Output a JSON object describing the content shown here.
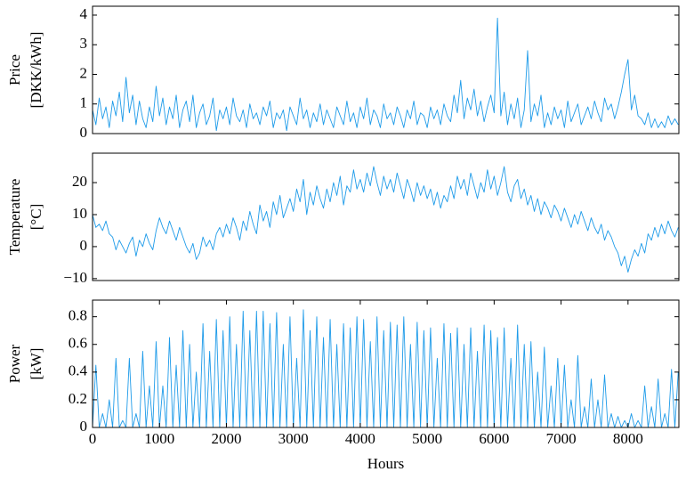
{
  "chart_data": [
    {
      "type": "line",
      "ylabel": [
        "Price",
        "[DKK/kWh]"
      ],
      "xlim": [
        0,
        8760
      ],
      "ylim": [
        0,
        4.3
      ],
      "yticks": [
        0,
        1,
        2,
        3,
        4
      ],
      "x": [
        0,
        50,
        100,
        150,
        200,
        250,
        300,
        350,
        400,
        450,
        500,
        550,
        600,
        650,
        700,
        750,
        800,
        850,
        900,
        950,
        1000,
        1050,
        1100,
        1150,
        1200,
        1250,
        1300,
        1350,
        1400,
        1450,
        1500,
        1550,
        1600,
        1650,
        1700,
        1750,
        1800,
        1850,
        1900,
        1950,
        2000,
        2050,
        2100,
        2150,
        2200,
        2250,
        2300,
        2350,
        2400,
        2450,
        2500,
        2550,
        2600,
        2650,
        2700,
        2750,
        2800,
        2850,
        2900,
        2950,
        3000,
        3050,
        3100,
        3150,
        3200,
        3250,
        3300,
        3350,
        3400,
        3450,
        3500,
        3550,
        3600,
        3650,
        3700,
        3750,
        3800,
        3850,
        3900,
        3950,
        4000,
        4050,
        4100,
        4150,
        4200,
        4250,
        4300,
        4350,
        4400,
        4450,
        4500,
        4550,
        4600,
        4650,
        4700,
        4750,
        4800,
        4850,
        4900,
        4950,
        5000,
        5050,
        5100,
        5150,
        5200,
        5250,
        5300,
        5350,
        5400,
        5450,
        5500,
        5550,
        5600,
        5650,
        5700,
        5750,
        5800,
        5850,
        5900,
        5950,
        6000,
        6050,
        6100,
        6150,
        6200,
        6250,
        6300,
        6350,
        6400,
        6450,
        6500,
        6550,
        6600,
        6650,
        6700,
        6750,
        6800,
        6850,
        6900,
        6950,
        7000,
        7050,
        7100,
        7150,
        7200,
        7250,
        7300,
        7350,
        7400,
        7450,
        7500,
        7550,
        7600,
        7650,
        7700,
        7750,
        7800,
        7850,
        7900,
        7950,
        8000,
        8050,
        8100,
        8150,
        8200,
        8250,
        8300,
        8350,
        8400,
        8450,
        8500,
        8550,
        8600,
        8650,
        8700,
        8750
      ],
      "series": [
        {
          "color": "#1e9be9",
          "values": [
            0.8,
            0.3,
            1.2,
            0.5,
            0.9,
            0.2,
            1.1,
            0.6,
            1.4,
            0.4,
            1.9,
            0.7,
            1.3,
            0.3,
            1.1,
            0.5,
            0.2,
            0.9,
            0.4,
            1.6,
            0.6,
            1.2,
            0.3,
            0.9,
            0.5,
            1.3,
            0.2,
            0.8,
            1.1,
            0.4,
            1.3,
            0.2,
            0.7,
            1.0,
            0.3,
            0.6,
            1.2,
            0.1,
            0.8,
            0.5,
            0.9,
            0.3,
            1.2,
            0.6,
            0.4,
            0.8,
            0.2,
            1.0,
            0.5,
            0.7,
            0.3,
            0.9,
            0.6,
            1.1,
            0.2,
            0.7,
            0.5,
            0.8,
            0.1,
            0.9,
            0.6,
            0.3,
            1.2,
            0.5,
            0.8,
            0.2,
            0.7,
            0.4,
            1.0,
            0.3,
            0.8,
            0.5,
            0.2,
            0.9,
            0.6,
            0.3,
            1.1,
            0.4,
            0.7,
            0.2,
            0.9,
            0.5,
            1.2,
            0.3,
            0.8,
            0.6,
            0.2,
            1.0,
            0.5,
            0.7,
            0.3,
            0.9,
            0.6,
            0.2,
            0.8,
            0.5,
            1.1,
            0.3,
            0.7,
            0.6,
            0.2,
            0.9,
            0.5,
            0.8,
            0.3,
            1.0,
            0.6,
            0.4,
            1.3,
            0.7,
            1.8,
            0.5,
            1.2,
            0.8,
            1.5,
            0.6,
            1.1,
            0.4,
            0.9,
            1.3,
            0.7,
            3.9,
            0.6,
            1.4,
            0.3,
            1.0,
            0.5,
            1.2,
            0.2,
            0.8,
            2.8,
            0.4,
            1.0,
            0.6,
            1.3,
            0.2,
            0.7,
            0.3,
            0.9,
            0.5,
            0.8,
            0.2,
            1.1,
            0.4,
            0.7,
            1.0,
            0.3,
            0.6,
            0.9,
            0.5,
            1.1,
            0.7,
            0.4,
            1.2,
            0.8,
            1.0,
            0.5,
            0.9,
            1.4,
            2.0,
            2.5,
            0.8,
            1.3,
            0.6,
            0.5,
            0.3,
            0.7,
            0.2,
            0.5,
            0.2,
            0.4,
            0.2,
            0.6,
            0.3,
            0.5,
            0.3
          ]
        }
      ]
    },
    {
      "type": "line",
      "ylabel": [
        "Temperature",
        "[°C]"
      ],
      "xlim": [
        0,
        8760
      ],
      "ylim": [
        -10.6,
        29.2
      ],
      "yticks": [
        {
          "value": -10,
          "label": "−10"
        },
        0,
        10,
        20
      ],
      "x": [
        0,
        50,
        100,
        150,
        200,
        250,
        300,
        350,
        400,
        450,
        500,
        550,
        600,
        650,
        700,
        750,
        800,
        850,
        900,
        950,
        1000,
        1050,
        1100,
        1150,
        1200,
        1250,
        1300,
        1350,
        1400,
        1450,
        1500,
        1550,
        1600,
        1650,
        1700,
        1750,
        1800,
        1850,
        1900,
        1950,
        2000,
        2050,
        2100,
        2150,
        2200,
        2250,
        2300,
        2350,
        2400,
        2450,
        2500,
        2550,
        2600,
        2650,
        2700,
        2750,
        2800,
        2850,
        2900,
        2950,
        3000,
        3050,
        3100,
        3150,
        3200,
        3250,
        3300,
        3350,
        3400,
        3450,
        3500,
        3550,
        3600,
        3650,
        3700,
        3750,
        3800,
        3850,
        3900,
        3950,
        4000,
        4050,
        4100,
        4150,
        4200,
        4250,
        4300,
        4350,
        4400,
        4450,
        4500,
        4550,
        4600,
        4650,
        4700,
        4750,
        4800,
        4850,
        4900,
        4950,
        5000,
        5050,
        5100,
        5150,
        5200,
        5250,
        5300,
        5350,
        5400,
        5450,
        5500,
        5550,
        5600,
        5650,
        5700,
        5750,
        5800,
        5850,
        5900,
        5950,
        6000,
        6050,
        6100,
        6150,
        6200,
        6250,
        6300,
        6350,
        6400,
        6450,
        6500,
        6550,
        6600,
        6650,
        6700,
        6750,
        6800,
        6850,
        6900,
        6950,
        7000,
        7050,
        7100,
        7150,
        7200,
        7250,
        7300,
        7350,
        7400,
        7450,
        7500,
        7550,
        7600,
        7650,
        7700,
        7750,
        7800,
        7850,
        7900,
        7950,
        8000,
        8050,
        8100,
        8150,
        8200,
        8250,
        8300,
        8350,
        8400,
        8450,
        8500,
        8550,
        8600,
        8650,
        8700,
        8750
      ],
      "series": [
        {
          "color": "#1e9be9",
          "values": [
            10,
            6,
            7,
            5,
            8,
            4,
            3,
            -1,
            2,
            0,
            -2,
            1,
            3,
            -3,
            2,
            0,
            4,
            1,
            -1,
            5,
            9,
            6,
            4,
            8,
            5,
            2,
            6,
            3,
            0,
            -2,
            1,
            -4,
            -2,
            3,
            0,
            2,
            -1,
            4,
            6,
            3,
            7,
            4,
            9,
            6,
            2,
            8,
            5,
            11,
            7,
            4,
            13,
            8,
            11,
            6,
            14,
            10,
            16,
            9,
            12,
            15,
            11,
            18,
            14,
            21,
            10,
            17,
            13,
            19,
            15,
            12,
            18,
            14,
            20,
            16,
            22,
            13,
            19,
            17,
            24,
            18,
            21,
            17,
            23,
            19,
            25,
            20,
            16,
            22,
            18,
            21,
            17,
            23,
            19,
            15,
            21,
            18,
            14,
            20,
            16,
            19,
            15,
            18,
            13,
            17,
            12,
            16,
            14,
            19,
            15,
            22,
            18,
            21,
            16,
            23,
            19,
            15,
            20,
            17,
            24,
            18,
            22,
            16,
            20,
            25,
            17,
            14,
            19,
            21,
            15,
            18,
            13,
            16,
            11,
            15,
            10,
            14,
            12,
            9,
            13,
            11,
            8,
            12,
            9,
            6,
            10,
            7,
            11,
            8,
            5,
            9,
            6,
            4,
            7,
            2,
            5,
            3,
            0,
            -2,
            -6,
            -3,
            -8,
            -4,
            -1,
            -3,
            1,
            -2,
            4,
            2,
            6,
            3,
            7,
            4,
            8,
            5,
            3,
            6
          ]
        }
      ]
    },
    {
      "type": "line",
      "ylabel": [
        "Power",
        "[kW]"
      ],
      "xlabel": "Hours",
      "xlim": [
        0,
        8760
      ],
      "xticks": [
        0,
        1000,
        2000,
        3000,
        4000,
        5000,
        6000,
        7000,
        8000
      ],
      "ylim": [
        0,
        0.92
      ],
      "yticks": [
        0,
        0.2,
        0.4,
        0.6,
        0.8
      ],
      "x": [
        0,
        50,
        100,
        150,
        200,
        250,
        300,
        350,
        400,
        450,
        500,
        550,
        600,
        650,
        700,
        750,
        800,
        850,
        900,
        950,
        1000,
        1050,
        1100,
        1150,
        1200,
        1250,
        1300,
        1350,
        1400,
        1450,
        1500,
        1550,
        1600,
        1650,
        1700,
        1750,
        1800,
        1850,
        1900,
        1950,
        2000,
        2050,
        2100,
        2150,
        2200,
        2250,
        2300,
        2350,
        2400,
        2450,
        2500,
        2550,
        2600,
        2650,
        2700,
        2750,
        2800,
        2850,
        2900,
        2950,
        3000,
        3050,
        3100,
        3150,
        3200,
        3250,
        3300,
        3350,
        3400,
        3450,
        3500,
        3550,
        3600,
        3650,
        3700,
        3750,
        3800,
        3850,
        3900,
        3950,
        4000,
        4050,
        4100,
        4150,
        4200,
        4250,
        4300,
        4350,
        4400,
        4450,
        4500,
        4550,
        4600,
        4650,
        4700,
        4750,
        4800,
        4850,
        4900,
        4950,
        5000,
        5050,
        5100,
        5150,
        5200,
        5250,
        5300,
        5350,
        5400,
        5450,
        5500,
        5550,
        5600,
        5650,
        5700,
        5750,
        5800,
        5850,
        5900,
        5950,
        6000,
        6050,
        6100,
        6150,
        6200,
        6250,
        6300,
        6350,
        6400,
        6450,
        6500,
        6550,
        6600,
        6650,
        6700,
        6750,
        6800,
        6850,
        6900,
        6950,
        7000,
        7050,
        7100,
        7150,
        7200,
        7250,
        7300,
        7350,
        7400,
        7450,
        7500,
        7550,
        7600,
        7650,
        7700,
        7750,
        7800,
        7850,
        7900,
        7950,
        8000,
        8050,
        8100,
        8150,
        8200,
        8250,
        8300,
        8350,
        8400,
        8450,
        8500,
        8550,
        8600,
        8650,
        8700,
        8750
      ],
      "series": [
        {
          "color": "#1e9be9",
          "values": [
            0,
            0.45,
            0,
            0.1,
            0,
            0.2,
            0,
            0.5,
            0,
            0.05,
            0,
            0.5,
            0,
            0.1,
            0,
            0.55,
            0,
            0.3,
            0,
            0.62,
            0,
            0.3,
            0,
            0.65,
            0,
            0.45,
            0,
            0.7,
            0,
            0.6,
            0,
            0.4,
            0,
            0.75,
            0,
            0.55,
            0,
            0.78,
            0,
            0.7,
            0,
            0.8,
            0,
            0.6,
            0,
            0.84,
            0,
            0.7,
            0,
            0.84,
            0,
            0.84,
            0,
            0.75,
            0,
            0.83,
            0,
            0.6,
            0,
            0.8,
            0,
            0.5,
            0,
            0.85,
            0,
            0.7,
            0,
            0.8,
            0,
            0.65,
            0,
            0.78,
            0,
            0.6,
            0,
            0.75,
            0,
            0.72,
            0,
            0.8,
            0,
            0.78,
            0,
            0.62,
            0,
            0.8,
            0,
            0.7,
            0,
            0.76,
            0,
            0.74,
            0,
            0.8,
            0,
            0.6,
            0,
            0.76,
            0,
            0.7,
            0,
            0.72,
            0,
            0.5,
            0,
            0.75,
            0,
            0.68,
            0,
            0.72,
            0,
            0.6,
            0,
            0.72,
            0,
            0.55,
            0,
            0.74,
            0,
            0.7,
            0,
            0.65,
            0,
            0.72,
            0,
            0.5,
            0,
            0.74,
            0,
            0.6,
            0,
            0.62,
            0,
            0.4,
            0,
            0.58,
            0,
            0.3,
            0,
            0.5,
            0,
            0.45,
            0,
            0.2,
            0,
            0.52,
            0,
            0.15,
            0,
            0.35,
            0,
            0.2,
            0,
            0.38,
            0,
            0.1,
            0,
            0.08,
            0,
            0.05,
            0,
            0.1,
            0,
            0.05,
            0,
            0.3,
            0,
            0.15,
            0,
            0.35,
            0,
            0.1,
            0,
            0.42,
            0,
            0.4
          ]
        }
      ]
    }
  ]
}
